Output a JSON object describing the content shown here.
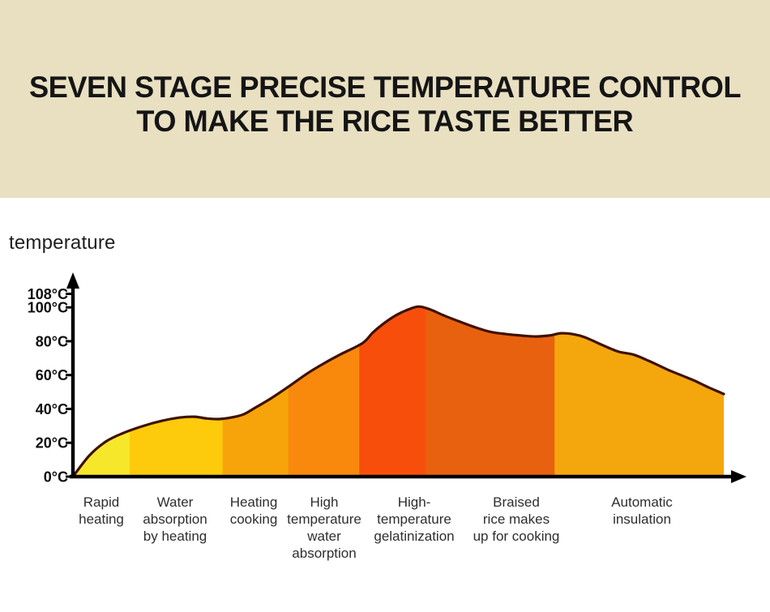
{
  "header": {
    "title_line1": "SEVEN STAGE PRECISE TEMPERATURE CONTROL",
    "title_line2": "TO MAKE THE RICE TASTE BETTER",
    "background_color": "#E9E0C2",
    "text_color": "#151515"
  },
  "chart_data": {
    "type": "area",
    "title": "",
    "ylabel": "temperature",
    "xlabel": "",
    "ylim": [
      0,
      115
    ],
    "grid": false,
    "legend": "none",
    "axis_color": "#000000",
    "outline_color": "#3F1203",
    "y_ticks": [
      {
        "label": "108°C",
        "temp": 108
      },
      {
        "label": "100°C",
        "temp": 100
      },
      {
        "label": "80°C",
        "temp": 80
      },
      {
        "label": "60°C",
        "temp": 60
      },
      {
        "label": "40°C",
        "temp": 40
      },
      {
        "label": "20°C",
        "temp": 20
      },
      {
        "label": "0°C",
        "temp": 0
      }
    ],
    "profile": [
      {
        "x": 0,
        "temp": 0
      },
      {
        "x": 2.5,
        "temp": 12.4
      },
      {
        "x": 5.0,
        "temp": 20.6
      },
      {
        "x": 7.5,
        "temp": 25.4
      },
      {
        "x": 10.6,
        "temp": 29.7
      },
      {
        "x": 13.7,
        "temp": 33.0
      },
      {
        "x": 16.4,
        "temp": 34.9
      },
      {
        "x": 18.7,
        "temp": 35.4
      },
      {
        "x": 20.5,
        "temp": 34.4
      },
      {
        "x": 22.4,
        "temp": 34.0
      },
      {
        "x": 24.3,
        "temp": 34.9
      },
      {
        "x": 26.2,
        "temp": 36.8
      },
      {
        "x": 28.0,
        "temp": 40.7
      },
      {
        "x": 30.5,
        "temp": 46.4
      },
      {
        "x": 33.1,
        "temp": 53.1
      },
      {
        "x": 36.1,
        "temp": 61.2
      },
      {
        "x": 38.6,
        "temp": 67.0
      },
      {
        "x": 41.1,
        "temp": 72.2
      },
      {
        "x": 44.5,
        "temp": 78.9
      },
      {
        "x": 46.1,
        "temp": 85.2
      },
      {
        "x": 47.9,
        "temp": 90.9
      },
      {
        "x": 49.8,
        "temp": 95.7
      },
      {
        "x": 51.7,
        "temp": 99.0
      },
      {
        "x": 53.2,
        "temp": 100.5
      },
      {
        "x": 55.0,
        "temp": 98.6
      },
      {
        "x": 57.0,
        "temp": 95.2
      },
      {
        "x": 59.2,
        "temp": 91.9
      },
      {
        "x": 61.6,
        "temp": 88.5
      },
      {
        "x": 64.1,
        "temp": 85.6
      },
      {
        "x": 66.6,
        "temp": 84.2
      },
      {
        "x": 69.1,
        "temp": 83.3
      },
      {
        "x": 71.2,
        "temp": 82.8
      },
      {
        "x": 73.2,
        "temp": 83.4
      },
      {
        "x": 75.0,
        "temp": 84.7
      },
      {
        "x": 76.8,
        "temp": 84.2
      },
      {
        "x": 78.7,
        "temp": 82.3
      },
      {
        "x": 80.9,
        "temp": 78.5
      },
      {
        "x": 83.7,
        "temp": 74.0
      },
      {
        "x": 86.2,
        "temp": 72.0
      },
      {
        "x": 88.7,
        "temp": 68.0
      },
      {
        "x": 91.2,
        "temp": 63.5
      },
      {
        "x": 93.4,
        "temp": 60.0
      },
      {
        "x": 95.6,
        "temp": 56.5
      },
      {
        "x": 97.5,
        "temp": 53.0
      },
      {
        "x": 100,
        "temp": 48.8
      }
    ],
    "stages": [
      {
        "label": "Rapid heating",
        "label_lines": [
          "Rapid",
          "heating"
        ],
        "start_pct": 0,
        "end_pct": 8.7,
        "label_x_pct": 4.4,
        "color": "#F7E72A"
      },
      {
        "label": "Water absorption by heating",
        "label_lines": [
          "Water",
          "absorption",
          "by heating"
        ],
        "start_pct": 8.7,
        "end_pct": 23.0,
        "label_x_pct": 15.7,
        "color": "#FDCA0C"
      },
      {
        "label": "Heating cooking",
        "label_lines": [
          "Heating",
          "cooking"
        ],
        "start_pct": 23.0,
        "end_pct": 33.1,
        "label_x_pct": 27.8,
        "color": "#F7A40A"
      },
      {
        "label": "High temperature water absorption",
        "label_lines": [
          "High",
          "temperature",
          "water",
          "absorption"
        ],
        "start_pct": 33.1,
        "end_pct": 44.0,
        "label_x_pct": 38.6,
        "color": "#F8890D"
      },
      {
        "label": "High-temperature gelatinization",
        "label_lines": [
          "High-",
          "temperature",
          "gelatinization"
        ],
        "start_pct": 44.0,
        "end_pct": 54.2,
        "label_x_pct": 52.4,
        "color": "#F84E0C"
      },
      {
        "label": "Braised rice makes up for cooking",
        "label_lines": [
          "Braised",
          "rice makes",
          "up for cooking"
        ],
        "start_pct": 54.2,
        "end_pct": 74.0,
        "label_x_pct": 68.1,
        "color": "#E8610F"
      },
      {
        "label": "Automatic insulation",
        "label_lines": [
          "Automatic",
          "insulation"
        ],
        "start_pct": 74.0,
        "end_pct": 100,
        "label_x_pct": 87.4,
        "color": "#F4A60D"
      }
    ]
  }
}
